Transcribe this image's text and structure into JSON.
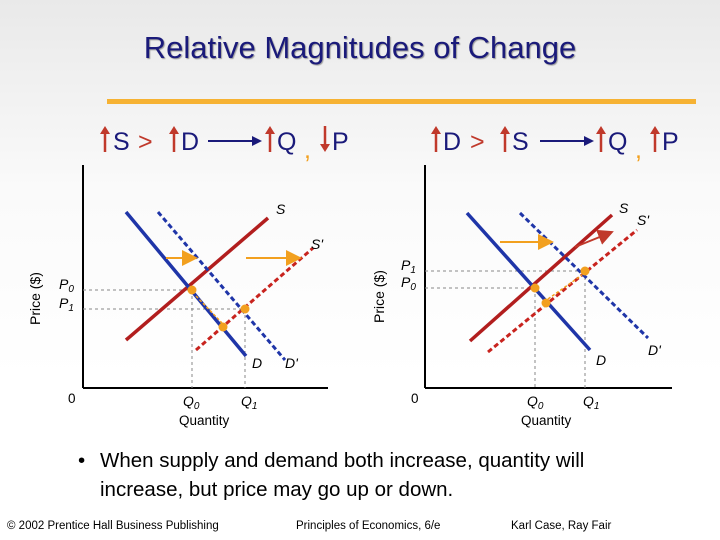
{
  "slide": {
    "title": "Relative Magnitudes of Change",
    "bullet": "When supply and demand both increase, quantity will increase, but price may go up or down.",
    "accent_color": "#f6b233",
    "title_color": "#1a1a7a"
  },
  "left_graph": {
    "header": {
      "first": "S",
      "greater": ">",
      "second": "D",
      "q": "Q",
      "comma": ",",
      "p": "P"
    },
    "header_arrows": {
      "first": "up",
      "second": "up",
      "q": "up",
      "p": "down"
    },
    "y_axis_title": "Price ($)",
    "x_axis_title": "Quantity",
    "origin": "0",
    "price_ticks": [
      "P0",
      "P1"
    ],
    "quantity_ticks": [
      "Q0",
      "Q1"
    ],
    "curve_labels": {
      "supply": "S",
      "supply_new": "S'",
      "demand": "D",
      "demand_new": "D'"
    },
    "subscripts": {
      "zero": "0",
      "one": "1"
    }
  },
  "right_graph": {
    "header": {
      "first": "D",
      "greater": ">",
      "second": "S",
      "q": "Q",
      "comma": ",",
      "p": "P"
    },
    "header_arrows": {
      "first": "up",
      "second": "up",
      "q": "up",
      "p": "up"
    },
    "y_axis_title": "Price ($)",
    "x_axis_title": "Quantity",
    "origin": "0",
    "price_ticks": [
      "P1",
      "P0"
    ],
    "quantity_ticks": [
      "Q0",
      "Q1"
    ],
    "curve_labels": {
      "supply": "S",
      "supply_new": "S'",
      "demand": "D",
      "demand_new": "D'"
    },
    "subscripts": {
      "zero": "0",
      "one": "1"
    }
  },
  "footer": {
    "copyright": "© 2002 Prentice Hall Business Publishing",
    "book": "Principles of Economics, 6/e",
    "authors": "Karl Case, Ray Fair"
  },
  "colors": {
    "supply": "#b21e1e",
    "demand": "#1f35a8",
    "shifted_dash": "#c8231e",
    "shift_arrow": "#f2a01f",
    "equilibrium_dot": "#f2a01f",
    "header_arrow": "#c0392b",
    "header_text": "#1a1a7a"
  }
}
